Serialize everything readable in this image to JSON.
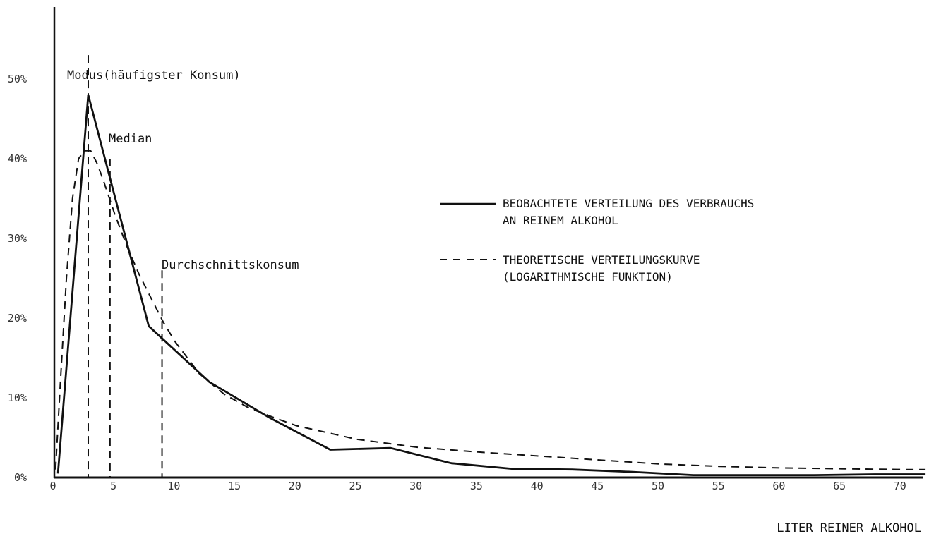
{
  "chart_data": {
    "type": "line",
    "xlabel": "LITER REINER ALKOHOL",
    "ylabel": "",
    "xlim": [
      0,
      72
    ],
    "ylim": [
      0,
      60
    ],
    "x_ticks": [
      "0",
      "5",
      "10",
      "15",
      "20",
      "25",
      "30",
      "35",
      "40",
      "45",
      "50",
      "55",
      "60",
      "65",
      "70"
    ],
    "y_ticks": [
      "0%",
      "10%",
      "20%",
      "30%",
      "40%",
      "50%"
    ],
    "y_tick_values": [
      0,
      10,
      20,
      30,
      40,
      50
    ],
    "x_tick_values": [
      0,
      5,
      10,
      15,
      20,
      25,
      30,
      35,
      40,
      45,
      50,
      55,
      60,
      65,
      70
    ],
    "series": [
      {
        "name": "BEOBACHTETE VERTEILUNG DES VERBRAUCHS AN REINEM ALKOHOL",
        "style": "solid",
        "x": [
          0.3,
          2.8,
          7.8,
          12.8,
          17.8,
          22.8,
          27.8,
          32.8,
          37.8,
          42.8,
          47.8,
          52.8,
          57.8,
          62.8,
          67.8,
          72
        ],
        "y": [
          0.5,
          48,
          19,
          12,
          7.5,
          3.5,
          3.7,
          1.8,
          1.1,
          1.0,
          0.7,
          0.3,
          0.3,
          0.3,
          0.4,
          0.4
        ]
      },
      {
        "name": "THEORETISCHE VERTEILUNGSKURVE (LOGARITHMISCHE FUNKTION)",
        "style": "dashed",
        "x": [
          0.1,
          0.5,
          1,
          1.5,
          2,
          2.5,
          3,
          3.5,
          4,
          5,
          6,
          7,
          8,
          9,
          10,
          12,
          14,
          16,
          18,
          20,
          25,
          30,
          35,
          40,
          45,
          50,
          55,
          60,
          65,
          70,
          72
        ],
        "y": [
          1,
          12,
          25,
          35,
          40,
          41,
          41,
          39.5,
          37.5,
          33,
          29,
          25.5,
          22.5,
          19.5,
          17,
          13,
          10.5,
          8.8,
          7.6,
          6.5,
          4.8,
          3.8,
          3.2,
          2.7,
          2.2,
          1.7,
          1.4,
          1.2,
          1.1,
          1.0,
          1.0
        ]
      }
    ],
    "markers": [
      {
        "label": "Modus(häufigster Konsum)",
        "x": 2.8,
        "y_top": 53
      },
      {
        "label": "Median",
        "x": 4.6,
        "y_top": 40
      },
      {
        "label": "Durchschnittskonsum",
        "x": 8.9,
        "y_top": 26
      }
    ],
    "grid": false,
    "legend": "right"
  }
}
